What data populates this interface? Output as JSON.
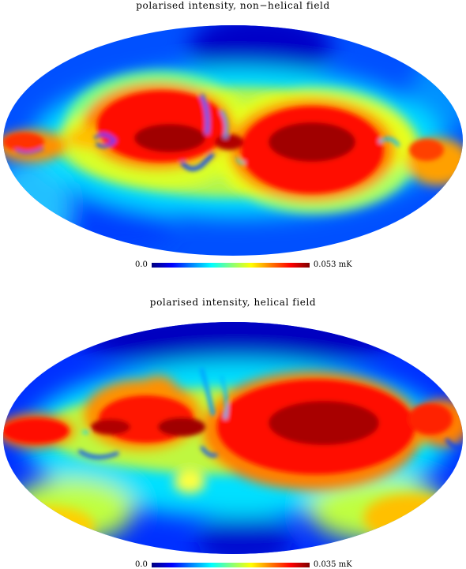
{
  "colors": {
    "scale": [
      "#00007f",
      "#0000ff",
      "#0080ff",
      "#00ffff",
      "#80ff80",
      "#ffff00",
      "#ff8000",
      "#ff0000",
      "#7f0000"
    ]
  },
  "panels": [
    {
      "title": "polarised intensity, non−helical field",
      "scale_min_label": "0.0",
      "scale_max_label": "0.053 mK",
      "scale_max_value": 0.053,
      "unit": "mK"
    },
    {
      "title": "polarised intensity, helical field",
      "scale_min_label": "0.0",
      "scale_max_label": "0.035 mK",
      "scale_max_value": 0.035,
      "unit": "mK"
    }
  ]
}
